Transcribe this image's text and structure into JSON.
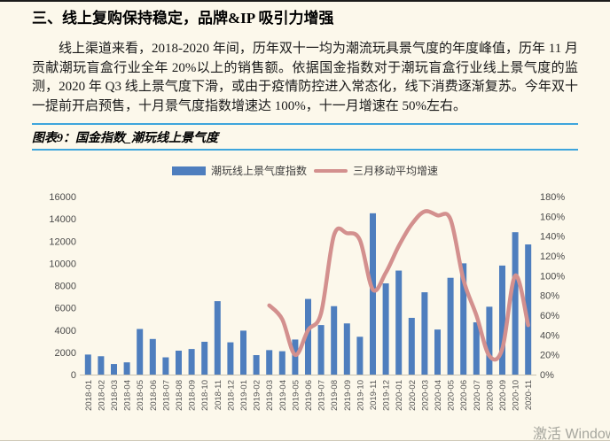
{
  "page": {
    "title": "三、线上复购保持稳定，品牌&IP 吸引力增强",
    "paragraph": "线上渠道来看，2018-2020 年间，历年双十一均为潮流玩具景气度的年度峰值，历年 11 月贡献潮玩盲盒行业全年 20%以上的销售额。依据国金指数对于潮玩盲盒行业线上景气度的监测，2020 年 Q3 线上景气度下滑，或由于疫情防控进入常态化，线下消费逐渐复苏。今年双十一提前开启预售，十月景气度指数增速达 100%，十一月增速在 50%左右。",
    "watermark": "激活 Windows"
  },
  "figure": {
    "caption": "图表9：国金指数_潮玩线上景气度",
    "legend": [
      {
        "label": "潮玩线上景气度指数",
        "type": "bar",
        "color": "#4E7EBE"
      },
      {
        "label": "三月移动平均增速",
        "type": "line",
        "color": "#D3908E"
      }
    ]
  },
  "chart_data": {
    "type": "combo-bar-line",
    "title": "国金指数_潮玩线上景气度",
    "categories": [
      "2018-01",
      "2018-02",
      "2018-03",
      "2018-04",
      "2018-05",
      "2018-06",
      "2018-07",
      "2018-08",
      "2018-09",
      "2018-10",
      "2018-11",
      "2018-12",
      "2019-01",
      "2019-02",
      "2019-03",
      "2019-04",
      "2019-05",
      "2019-06",
      "2019-07",
      "2019-08",
      "2019-09",
      "2019-10",
      "2019-11",
      "2019-12",
      "2020-01",
      "2020-02",
      "2020-03",
      "2020-04",
      "2020-05",
      "2020-06",
      "2020-07",
      "2020-08",
      "2020-09",
      "2020-10",
      "2020-11"
    ],
    "series": [
      {
        "name": "潮玩线上景气度指数",
        "type": "bar",
        "axis": "left",
        "color": "#4E7EBE",
        "values": [
          1800,
          1650,
          950,
          1100,
          4100,
          3200,
          1550,
          2150,
          2300,
          2950,
          6600,
          2900,
          3950,
          1750,
          2200,
          2100,
          3150,
          6800,
          4450,
          6150,
          4600,
          3400,
          14500,
          8200,
          9350,
          5100,
          7400,
          4050,
          8700,
          10000,
          4700,
          6100,
          9800,
          12800,
          11700
        ]
      },
      {
        "name": "三月移动平均增速",
        "type": "line",
        "axis": "right",
        "color": "#D3908E",
        "values": [
          null,
          null,
          null,
          null,
          null,
          null,
          null,
          null,
          null,
          null,
          null,
          null,
          null,
          null,
          70,
          56,
          20,
          45,
          62,
          141,
          143,
          136,
          86,
          103,
          130,
          152,
          165,
          161,
          157,
          96,
          60,
          19,
          26,
          100,
          50
        ]
      }
    ],
    "left_axis": {
      "min": 0,
      "max": 16000,
      "step": 2000,
      "suffix": ""
    },
    "right_axis": {
      "min": 0,
      "max": 180,
      "step": 20,
      "suffix": "%"
    },
    "grid": false,
    "legend_position": "top"
  }
}
